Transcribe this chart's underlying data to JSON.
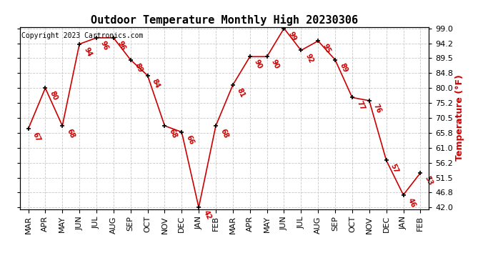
{
  "title": "Outdoor Temperature Monthly High 20230306",
  "copyright": "Copyright 2023 Cartronics.com",
  "ylabel": "Temperature (°F)",
  "months": [
    "MAR",
    "APR",
    "MAY",
    "JUN",
    "JUL",
    "AUG",
    "SEP",
    "OCT",
    "NOV",
    "DEC",
    "JAN",
    "FEB",
    "MAR",
    "APR",
    "MAY",
    "JUN",
    "JUL",
    "AUG",
    "SEP",
    "OCT",
    "NOV",
    "DEC",
    "JAN",
    "FEB"
  ],
  "values": [
    67,
    80,
    68,
    94,
    96,
    96,
    89,
    84,
    68,
    66,
    42,
    68,
    81,
    90,
    90,
    99,
    92,
    95,
    89,
    77,
    76,
    57,
    46,
    53
  ],
  "ylim_min": 42.0,
  "ylim_max": 99.0,
  "yticks": [
    42.0,
    46.8,
    51.5,
    56.2,
    61.0,
    65.8,
    70.5,
    75.2,
    80.0,
    84.8,
    89.5,
    94.2,
    99.0
  ],
  "line_color": "#cc0000",
  "marker_color": "#000000",
  "bg_color": "#ffffff",
  "grid_color": "#c8c8c8",
  "title_fontsize": 11,
  "data_label_fontsize": 7,
  "tick_fontsize": 8,
  "copyright_fontsize": 7,
  "ylabel_fontsize": 9
}
